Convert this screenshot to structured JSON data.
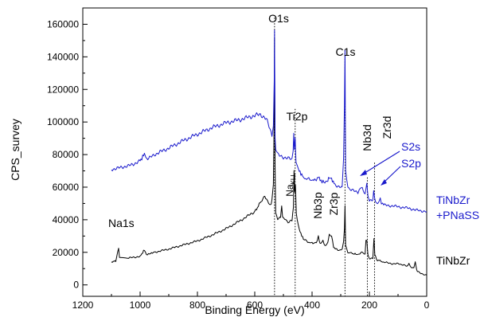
{
  "chart_data": {
    "type": "line",
    "title": "",
    "xlabel": "Binding Energy (eV)",
    "ylabel": "CPS_survey",
    "xlim": [
      1200,
      0
    ],
    "ylim": [
      -7000,
      170000
    ],
    "x_reversed": true,
    "x_ticks": [
      1200,
      1000,
      800,
      600,
      400,
      200,
      0
    ],
    "y_ticks": [
      0,
      20000,
      40000,
      60000,
      80000,
      100000,
      120000,
      140000,
      160000
    ],
    "grid": false,
    "legend": "none",
    "series": [
      {
        "name": "TiNbZr",
        "color": "#000000",
        "points": [
          [
            1100,
            14000
          ],
          [
            1085,
            14800
          ],
          [
            1075,
            22500
          ],
          [
            1072,
            16500
          ],
          [
            1040,
            16500
          ],
          [
            1000,
            17500
          ],
          [
            985,
            21500
          ],
          [
            978,
            18500
          ],
          [
            950,
            20000
          ],
          [
            900,
            22000
          ],
          [
            850,
            24500
          ],
          [
            800,
            27000
          ],
          [
            750,
            30500
          ],
          [
            700,
            34500
          ],
          [
            650,
            39500
          ],
          [
            600,
            45000
          ],
          [
            575,
            52000
          ],
          [
            565,
            55000
          ],
          [
            555,
            51000
          ],
          [
            545,
            48500
          ],
          [
            540,
            52000
          ],
          [
            535,
            62000
          ],
          [
            533,
            90000
          ],
          [
            531,
            152000
          ],
          [
            529,
            72000
          ],
          [
            527,
            44000
          ],
          [
            520,
            40500
          ],
          [
            510,
            41000
          ],
          [
            506,
            48000
          ],
          [
            503,
            42000
          ],
          [
            495,
            40000
          ],
          [
            480,
            38500
          ],
          [
            470,
            39500
          ],
          [
            465,
            48000
          ],
          [
            463,
            70000
          ],
          [
            461,
            56000
          ],
          [
            458,
            62000
          ],
          [
            455,
            44000
          ],
          [
            445,
            34000
          ],
          [
            430,
            28000
          ],
          [
            415,
            26500
          ],
          [
            400,
            25500
          ],
          [
            385,
            26000
          ],
          [
            378,
            30000
          ],
          [
            372,
            25000
          ],
          [
            362,
            27000
          ],
          [
            355,
            24000
          ],
          [
            345,
            26000
          ],
          [
            340,
            31000
          ],
          [
            332,
            30000
          ],
          [
            325,
            23000
          ],
          [
            310,
            21500
          ],
          [
            295,
            21500
          ],
          [
            290,
            26000
          ],
          [
            287,
            35000
          ],
          [
            285,
            48000
          ],
          [
            283,
            24000
          ],
          [
            275,
            20000
          ],
          [
            250,
            19000
          ],
          [
            240,
            18500
          ],
          [
            230,
            20000
          ],
          [
            215,
            19000
          ],
          [
            212,
            27000
          ],
          [
            209,
            28000
          ],
          [
            205,
            18500
          ],
          [
            200,
            16000
          ],
          [
            188,
            16500
          ],
          [
            184,
            28000
          ],
          [
            181,
            19000
          ],
          [
            175,
            15500
          ],
          [
            150,
            14000
          ],
          [
            120,
            13000
          ],
          [
            100,
            13000
          ],
          [
            90,
            12500
          ],
          [
            80,
            12500
          ],
          [
            70,
            11500
          ],
          [
            62,
            13000
          ],
          [
            55,
            11000
          ],
          [
            45,
            10500
          ],
          [
            40,
            14000
          ],
          [
            35,
            9000
          ],
          [
            30,
            8000
          ],
          [
            20,
            7000
          ],
          [
            10,
            6500
          ],
          [
            0,
            6000
          ]
        ]
      },
      {
        "name": "TiNbZr +PNaSS",
        "color": "#1a1acc",
        "points": [
          [
            1100,
            71000
          ],
          [
            1080,
            71500
          ],
          [
            1060,
            72500
          ],
          [
            1040,
            73000
          ],
          [
            1020,
            74500
          ],
          [
            1000,
            76000
          ],
          [
            985,
            80500
          ],
          [
            980,
            78000
          ],
          [
            970,
            77500
          ],
          [
            950,
            80000
          ],
          [
            900,
            84000
          ],
          [
            850,
            88500
          ],
          [
            800,
            92500
          ],
          [
            750,
            96500
          ],
          [
            700,
            99500
          ],
          [
            650,
            101500
          ],
          [
            620,
            103000
          ],
          [
            600,
            104000
          ],
          [
            580,
            104500
          ],
          [
            570,
            103500
          ],
          [
            560,
            102000
          ],
          [
            550,
            97000
          ],
          [
            540,
            92000
          ],
          [
            535,
            98000
          ],
          [
            532,
            125000
          ],
          [
            531,
            155000
          ],
          [
            529,
            90000
          ],
          [
            527,
            83000
          ],
          [
            520,
            80000
          ],
          [
            510,
            79000
          ],
          [
            500,
            78500
          ],
          [
            490,
            78000
          ],
          [
            480,
            77500
          ],
          [
            470,
            77000
          ],
          [
            466,
            82000
          ],
          [
            464,
            92000
          ],
          [
            462,
            84000
          ],
          [
            459,
            89000
          ],
          [
            456,
            76000
          ],
          [
            445,
            70000
          ],
          [
            430,
            66000
          ],
          [
            415,
            65000
          ],
          [
            400,
            64500
          ],
          [
            385,
            64500
          ],
          [
            378,
            67000
          ],
          [
            372,
            64000
          ],
          [
            355,
            63000
          ],
          [
            345,
            64500
          ],
          [
            340,
            66000
          ],
          [
            332,
            65000
          ],
          [
            320,
            61500
          ],
          [
            300,
            60000
          ],
          [
            295,
            60500
          ],
          [
            290,
            78000
          ],
          [
            287,
            110000
          ],
          [
            285,
            145000
          ],
          [
            283,
            70000
          ],
          [
            275,
            60000
          ],
          [
            260,
            58000
          ],
          [
            250,
            57500
          ],
          [
            240,
            57000
          ],
          [
            232,
            58500
          ],
          [
            228,
            60500
          ],
          [
            222,
            58000
          ],
          [
            215,
            55000
          ],
          [
            212,
            60000
          ],
          [
            209,
            62000
          ],
          [
            205,
            55000
          ],
          [
            200,
            52000
          ],
          [
            188,
            52000
          ],
          [
            185,
            58000
          ],
          [
            182,
            53000
          ],
          [
            175,
            50000
          ],
          [
            165,
            51500
          ],
          [
            162,
            54000
          ],
          [
            158,
            50000
          ],
          [
            150,
            49000
          ],
          [
            120,
            48500
          ],
          [
            100,
            48000
          ],
          [
            80,
            47500
          ],
          [
            60,
            47000
          ],
          [
            40,
            46000
          ],
          [
            20,
            45500
          ],
          [
            0,
            45000
          ]
        ]
      }
    ],
    "peak_lines": [
      {
        "label": "O1s",
        "x": 531,
        "ymax": 164000
      },
      {
        "label": "Ti2p",
        "x": 459,
        "ymax": 108000
      },
      {
        "label": "C1s",
        "x": 285,
        "ymax": 144000
      },
      {
        "label": "Nb3d",
        "x": 207,
        "ymax": 66000
      },
      {
        "label": "Zr3d",
        "x": 182,
        "ymax": 75000
      }
    ],
    "annotations": {
      "o1s": "O1s",
      "c1s": "C1s",
      "ti2p": "Ti2p",
      "nb3d": "Nb3d",
      "zr3d": "Zr3d",
      "s2s": "S2s",
      "s2p": "S2p",
      "na1s": "Na1s",
      "nakll": "Na",
      "nakll_sub": "KLL",
      "nb3p": "Nb3p",
      "zr3p": "Zr3p",
      "label_tinbzr": "TiNbZr",
      "label_pnass_1": "TiNbZr",
      "label_pnass_2": "+PNaSS"
    }
  }
}
